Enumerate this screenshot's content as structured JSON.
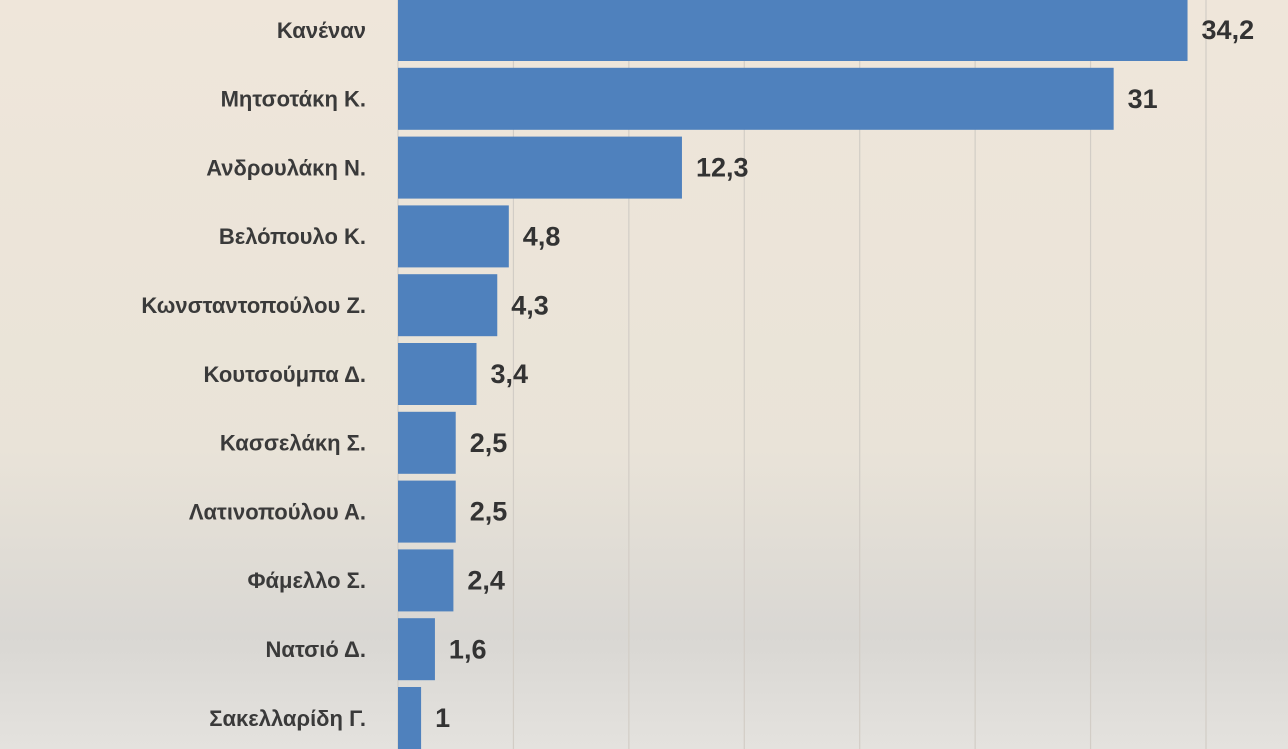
{
  "chart_data": {
    "type": "bar",
    "orientation": "horizontal",
    "categories": [
      "Κανέναν",
      "Μητσοτάκη Κ.",
      "Ανδρουλάκη Ν.",
      "Βελόπουλο Κ.",
      "Κωνσταντοπούλου Ζ.",
      "Κουτσούμπα Δ.",
      "Κασσελάκη Σ.",
      "Λατινοπούλου Α.",
      "Φάμελλο Σ.",
      "Νατσιό Δ.",
      "Σακελλαρίδη Γ."
    ],
    "values": [
      34.2,
      31,
      12.3,
      4.8,
      4.3,
      3.4,
      2.5,
      2.5,
      2.4,
      1.6,
      1
    ],
    "value_labels": [
      "34,2",
      "31",
      "12,3",
      "4,8",
      "4,3",
      "3,4",
      "2,5",
      "2,5",
      "2,4",
      "1,6",
      "1"
    ],
    "color": "#4f81bd",
    "xlim": [
      0,
      35
    ],
    "xticks": [
      0,
      5,
      10,
      15,
      20,
      25,
      30,
      35
    ],
    "grid": true
  }
}
